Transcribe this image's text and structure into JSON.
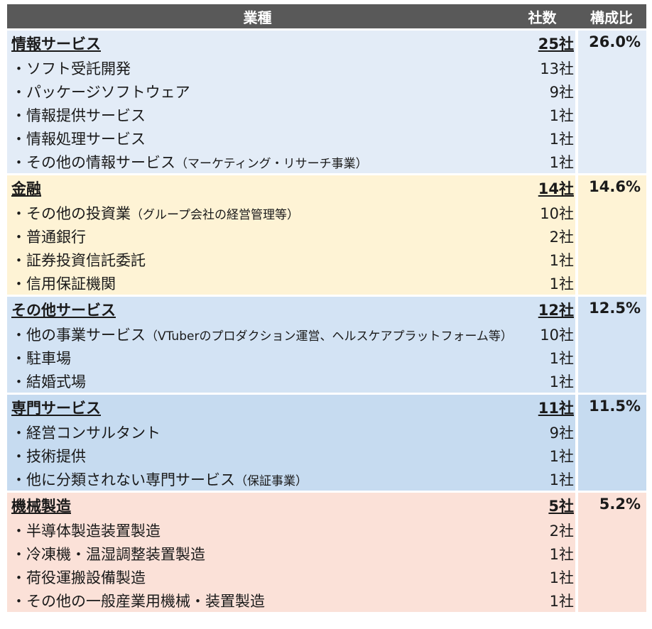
{
  "header": {
    "industry": "業種",
    "companies": "社数",
    "ratio": "構成比"
  },
  "groups": [
    {
      "category": "情報サービス",
      "count": "25社",
      "ratio": "26.0%",
      "items": [
        {
          "name": "・ソフト受託開発",
          "note": "",
          "count": "13社"
        },
        {
          "name": "・パッケージソフトウェア",
          "note": "",
          "count": "9社"
        },
        {
          "name": "・情報提供サービス",
          "note": "",
          "count": "1社"
        },
        {
          "name": "・情報処理サービス",
          "note": "",
          "count": "1社"
        },
        {
          "name": "・その他の情報サービス",
          "note": "（マーケティング・リサーチ事業）",
          "count": "1社"
        }
      ]
    },
    {
      "category": "金融",
      "count": "14社",
      "ratio": "14.6%",
      "items": [
        {
          "name": "・その他の投資業",
          "note": "（グループ会社の経営管理等）",
          "count": "10社"
        },
        {
          "name": "・普通銀行",
          "note": "",
          "count": "2社"
        },
        {
          "name": "・証券投資信託委託",
          "note": "",
          "count": "1社"
        },
        {
          "name": "・信用保証機関",
          "note": "",
          "count": "1社"
        }
      ]
    },
    {
      "category": "その他サービス",
      "count": "12社",
      "ratio": "12.5%",
      "items": [
        {
          "name": "・他の事業サービス",
          "note": "（VTuberのプロダクション運営、ヘルスケアプラットフォーム等）",
          "count": "10社"
        },
        {
          "name": "・駐車場",
          "note": "",
          "count": "1社"
        },
        {
          "name": "・結婚式場",
          "note": "",
          "count": "1社"
        }
      ]
    },
    {
      "category": "専門サービス",
      "count": "11社",
      "ratio": "11.5%",
      "items": [
        {
          "name": "・経営コンサルタント",
          "note": "",
          "count": "9社"
        },
        {
          "name": "・技術提供",
          "note": "",
          "count": "1社"
        },
        {
          "name": "・他に分類されない専門サービス",
          "note": "（保証事業）",
          "count": "1社"
        }
      ]
    },
    {
      "category": "機械製造",
      "count": "5社",
      "ratio": "5.2%",
      "items": [
        {
          "name": "・半導体製造装置製造",
          "note": "",
          "count": "2社"
        },
        {
          "name": "・冷凍機・温湿調整装置製造",
          "note": "",
          "count": "1社"
        },
        {
          "name": "・荷役運搬設備製造",
          "note": "",
          "count": "1社"
        },
        {
          "name": "・その他の一般産業用機械・装置製造",
          "note": "",
          "count": "1社"
        }
      ]
    }
  ]
}
